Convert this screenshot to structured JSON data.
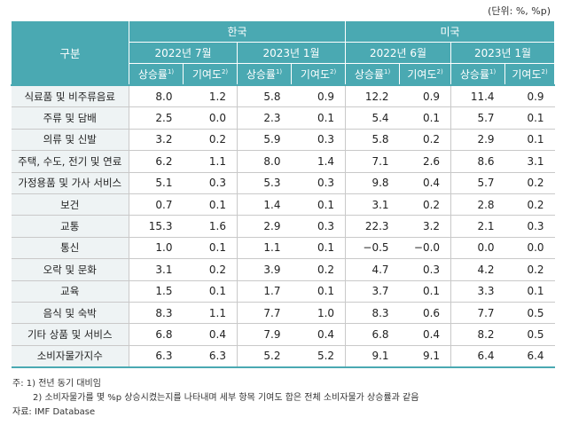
{
  "unit_label": "(단위: %, %p)",
  "header": {
    "category_label": "구분",
    "countries": [
      {
        "name": "한국",
        "periods": [
          "2022년 7월",
          "2023년 1월"
        ]
      },
      {
        "name": "미국",
        "periods": [
          "2022년 6월",
          "2023년 1월"
        ]
      }
    ],
    "rate_label": "상승률",
    "rate_note": "1)",
    "contrib_label": "기여도",
    "contrib_note": "2)"
  },
  "rows": [
    {
      "label": "식료품 및 비주류음료",
      "values": [
        "8.0",
        "1.2",
        "5.8",
        "0.9",
        "12.2",
        "0.9",
        "11.4",
        "0.9"
      ]
    },
    {
      "label": "주류 및 담배",
      "values": [
        "2.5",
        "0.0",
        "2.3",
        "0.1",
        "5.4",
        "0.1",
        "5.7",
        "0.1"
      ]
    },
    {
      "label": "의류 및 신발",
      "values": [
        "3.2",
        "0.2",
        "5.9",
        "0.3",
        "5.8",
        "0.2",
        "2.9",
        "0.1"
      ]
    },
    {
      "label": "주택, 수도, 전기 및 연료",
      "values": [
        "6.2",
        "1.1",
        "8.0",
        "1.4",
        "7.1",
        "2.6",
        "8.6",
        "3.1"
      ]
    },
    {
      "label": "가정용품 및 가사 서비스",
      "values": [
        "5.1",
        "0.3",
        "5.3",
        "0.3",
        "9.8",
        "0.4",
        "5.7",
        "0.2"
      ]
    },
    {
      "label": "보건",
      "values": [
        "0.7",
        "0.1",
        "1.4",
        "0.1",
        "3.1",
        "0.2",
        "2.8",
        "0.2"
      ]
    },
    {
      "label": "교통",
      "values": [
        "15.3",
        "1.6",
        "2.9",
        "0.3",
        "22.3",
        "3.2",
        "2.1",
        "0.3"
      ]
    },
    {
      "label": "통신",
      "values": [
        "1.0",
        "0.1",
        "1.1",
        "0.1",
        "−0.5",
        "−0.0",
        "0.0",
        "0.0"
      ]
    },
    {
      "label": "오락 및 문화",
      "values": [
        "3.1",
        "0.2",
        "3.9",
        "0.2",
        "4.7",
        "0.3",
        "4.2",
        "0.2"
      ]
    },
    {
      "label": "교육",
      "values": [
        "1.5",
        "0.1",
        "1.7",
        "0.1",
        "3.7",
        "0.1",
        "3.3",
        "0.1"
      ]
    },
    {
      "label": "음식 및 숙박",
      "values": [
        "8.3",
        "1.1",
        "7.7",
        "1.0",
        "8.3",
        "0.6",
        "7.7",
        "0.5"
      ]
    },
    {
      "label": "기타 상품 및 서비스",
      "values": [
        "6.8",
        "0.4",
        "7.9",
        "0.4",
        "6.8",
        "0.4",
        "8.2",
        "0.5"
      ]
    },
    {
      "label": "소비자물가지수",
      "values": [
        "6.3",
        "6.3",
        "5.2",
        "5.2",
        "9.1",
        "9.1",
        "6.4",
        "6.4"
      ]
    }
  ],
  "notes": {
    "note1": "주: 1) 전년 동기 대비임",
    "note2": "2) 소비자물가를 몇 %p 상승시켰는지를 나타내며 세부 항목 기여도 합은 전체 소비자물가 상승률과 같음",
    "source": "자료: IMF Database"
  }
}
